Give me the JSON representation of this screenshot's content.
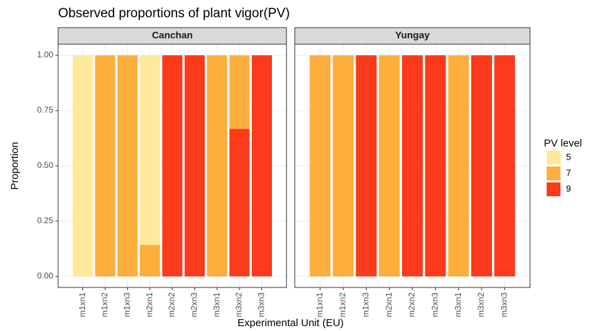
{
  "chart_data": {
    "type": "bar",
    "stacked": true,
    "title": "Observed proportions of plant vigor(PV)",
    "xlabel": "Experimental Unit (EU)",
    "ylabel": "Proportion",
    "legend_title": "PV level",
    "facets": [
      "Canchan",
      "Yungay"
    ],
    "categories": [
      "m1xn1",
      "m1xn2",
      "m1xn3",
      "m2xn1",
      "m2xn2",
      "m2xn3",
      "m3xn1",
      "m3xn2",
      "m3xn3"
    ],
    "series": [
      {
        "name": "9",
        "color": "#fc3a1c",
        "values": [
          [
            0,
            0,
            0,
            0,
            1,
            1,
            0,
            0.667,
            1
          ],
          [
            0,
            0,
            1,
            0,
            1,
            1,
            0,
            1,
            1
          ]
        ]
      },
      {
        "name": "7",
        "color": "#fdae3c",
        "values": [
          [
            0,
            1,
            1,
            0.143,
            0,
            0,
            1,
            0.333,
            0
          ],
          [
            1,
            1,
            0,
            1,
            0,
            0,
            1,
            0,
            0
          ]
        ]
      },
      {
        "name": "5",
        "color": "#ffe99a",
        "values": [
          [
            1,
            0,
            0,
            0.857,
            0,
            0,
            0,
            0,
            0
          ],
          [
            0,
            0,
            0,
            0,
            0,
            0,
            0,
            0,
            0
          ]
        ]
      }
    ],
    "ylim": [
      -0.05,
      1.05
    ],
    "yticks": [
      {
        "value": 0,
        "label": "0.00"
      },
      {
        "value": 0.25,
        "label": "0.25"
      },
      {
        "value": 0.5,
        "label": "0.50"
      },
      {
        "value": 0.75,
        "label": "0.75"
      },
      {
        "value": 1,
        "label": "1.00"
      }
    ],
    "grid": true
  }
}
